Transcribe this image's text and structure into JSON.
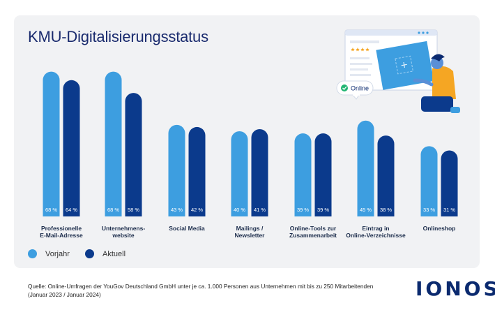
{
  "title": "KMU-Digitalisierungsstatus",
  "colors": {
    "vorjahr": "#3d9ee0",
    "aktuell": "#0b3a8c",
    "background": "#f1f2f4"
  },
  "chart_data": {
    "type": "bar",
    "title": "KMU-Digitalisierungsstatus",
    "categories": [
      [
        "Professionelle",
        "E-Mail-Adresse"
      ],
      [
        "Unternehmens-",
        "website"
      ],
      [
        "Social Media"
      ],
      [
        "Mailings /",
        "Newsletter"
      ],
      [
        "Online-Tools zur",
        "Zusammenarbeit"
      ],
      [
        "Eintrag in",
        "Online-Verzeichnisse"
      ],
      [
        "Onlineshop"
      ]
    ],
    "series": [
      {
        "name": "Vorjahr",
        "values": [
          68,
          68,
          43,
          40,
          39,
          45,
          33
        ],
        "labels": [
          "68 %",
          "68 %",
          "43 %",
          "40 %",
          "39 %",
          "45 %",
          "33 %"
        ]
      },
      {
        "name": "Aktuell",
        "values": [
          64,
          58,
          42,
          41,
          39,
          38,
          31
        ],
        "labels": [
          "64 %",
          "58 %",
          "42 %",
          "41 %",
          "39 %",
          "38 %",
          "31 %"
        ]
      }
    ],
    "unit": "%",
    "ylim": [
      0,
      70
    ],
    "legend": "bottom-left"
  },
  "legend": {
    "vorjahr": "Vorjahr",
    "aktuell": "Aktuell"
  },
  "illustration": {
    "badge": "Online",
    "rating_stars": 4
  },
  "source": "Quelle: Online-Umfragen der YouGov Deutschland GmbH unter je ca. 1.000 Personen aus Unternehmen mit bis zu 250 Mitarbeitenden (Januar 2023 / Januar 2024)",
  "logo": "IONOS"
}
